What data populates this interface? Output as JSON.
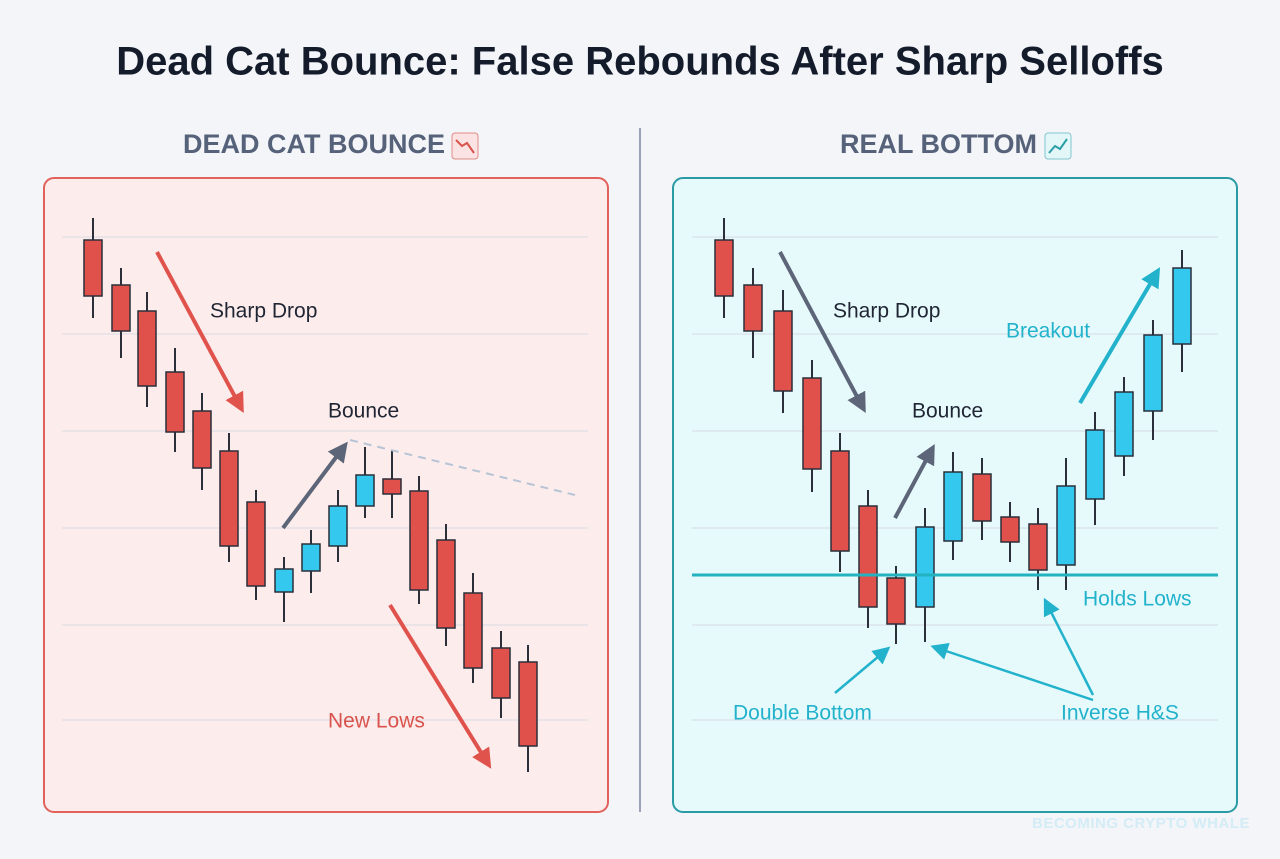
{
  "header": {
    "title": "Dead Cat Bounce: False Rebounds After Sharp Selloffs"
  },
  "left_panel": {
    "heading": "DEAD CAT BOUNCE",
    "labels": {
      "sharp_drop": "Sharp Drop",
      "bounce": "Bounce",
      "new_lows": "New Lows"
    }
  },
  "right_panel": {
    "heading": "REAL BOTTOM",
    "labels": {
      "sharp_drop": "Sharp Drop",
      "bounce": "Bounce",
      "breakout": "Breakout",
      "holds_lows": "Holds Lows",
      "double_bottom": "Double Bottom",
      "inverse_hs": "Inverse H&S"
    }
  },
  "watermark": "BECOMING CRYPTO WHALE"
}
